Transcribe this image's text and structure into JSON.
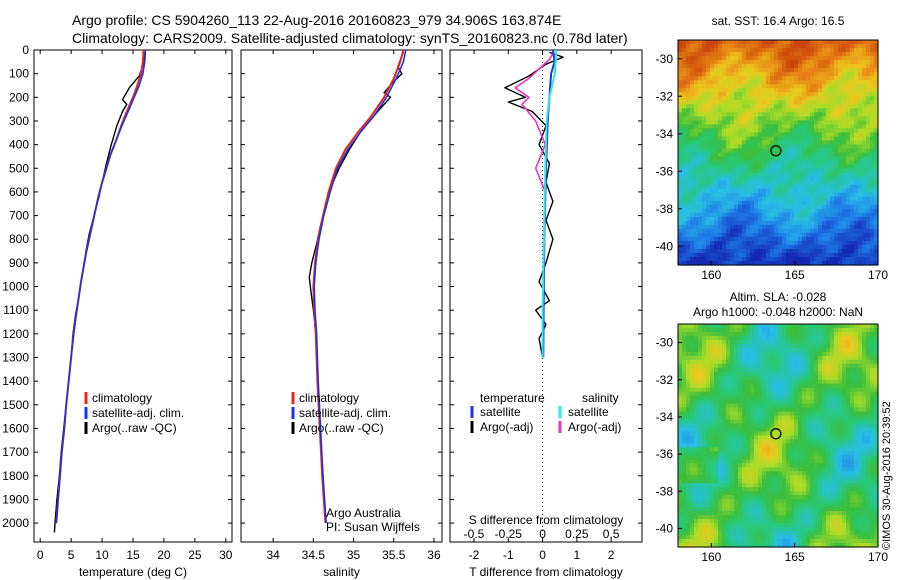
{
  "header": {
    "line1": "Argo profile: CS 5904260_113 22-Aug-2016 20160823_979 34.906S 163.874E",
    "line2": "Climatology: CARS2009. Satellite-adjusted climatology: synTS_20160823.nc (0.78d later)"
  },
  "credit": {
    "line1": "Argo Australia",
    "line2": "PI: Susan Wijffels"
  },
  "footer": "©IMOS 30-Aug-2016 20:39:52",
  "colors": {
    "climatology": "#e0281e",
    "satellite": "#1e32e6",
    "argo": "#000000",
    "sat_salinity": "#2ee6e6",
    "argo_salinity": "#e632c8",
    "axis": "#000000"
  },
  "chart_data": [
    {
      "type": "line",
      "xlabel": "temperature (deg C)",
      "ylim": [
        2080,
        0
      ],
      "xlim": [
        -1,
        31
      ],
      "xticks": [
        "0",
        "5",
        "10",
        "15",
        "20",
        "25",
        "30"
      ],
      "yticks": [
        "0",
        "100",
        "200",
        "300",
        "400",
        "500",
        "600",
        "700",
        "800",
        "900",
        "1000",
        "1100",
        "1200",
        "1300",
        "1400",
        "1500",
        "1600",
        "1700",
        "1800",
        "1900",
        "2000"
      ],
      "legend": [
        "climatology",
        "satellite-adj. clim.",
        "Argo(..raw -QC)"
      ],
      "series": [
        {
          "name": "climatology",
          "points": [
            [
              16.7,
              0
            ],
            [
              16.6,
              50
            ],
            [
              16.3,
              100
            ],
            [
              15.7,
              150
            ],
            [
              15.0,
              200
            ],
            [
              14.0,
              260
            ],
            [
              13.1,
              320
            ],
            [
              12.3,
              380
            ],
            [
              11.4,
              440
            ],
            [
              10.7,
              500
            ],
            [
              10.0,
              560
            ],
            [
              9.4,
              620
            ],
            [
              8.9,
              680
            ],
            [
              8.4,
              740
            ],
            [
              7.9,
              800
            ],
            [
              7.4,
              860
            ],
            [
              7.0,
              920
            ],
            [
              6.6,
              980
            ],
            [
              6.2,
              1050
            ],
            [
              5.8,
              1120
            ],
            [
              5.4,
              1200
            ],
            [
              5.0,
              1300
            ],
            [
              4.6,
              1400
            ],
            [
              4.2,
              1500
            ],
            [
              3.9,
              1600
            ],
            [
              3.5,
              1700
            ],
            [
              3.2,
              1800
            ],
            [
              2.9,
              1900
            ],
            [
              2.6,
              2000
            ]
          ]
        },
        {
          "name": "satellite-adj. clim.",
          "points": [
            [
              17.0,
              0
            ],
            [
              16.9,
              50
            ],
            [
              16.6,
              100
            ],
            [
              16.0,
              150
            ],
            [
              15.2,
              200
            ],
            [
              14.2,
              260
            ],
            [
              13.2,
              320
            ],
            [
              12.3,
              380
            ],
            [
              11.4,
              440
            ],
            [
              10.7,
              500
            ],
            [
              10.0,
              560
            ],
            [
              9.4,
              620
            ],
            [
              8.9,
              680
            ],
            [
              8.4,
              740
            ],
            [
              7.9,
              800
            ],
            [
              7.4,
              860
            ],
            [
              7.0,
              920
            ],
            [
              6.6,
              980
            ],
            [
              6.2,
              1050
            ],
            [
              5.8,
              1120
            ],
            [
              5.4,
              1200
            ],
            [
              5.0,
              1300
            ],
            [
              4.6,
              1400
            ],
            [
              4.2,
              1500
            ],
            [
              3.9,
              1600
            ],
            [
              3.5,
              1700
            ],
            [
              3.2,
              1800
            ],
            [
              2.9,
              1900
            ],
            [
              2.6,
              2000
            ]
          ]
        },
        {
          "name": "Argo(..raw -QC)",
          "points": [
            [
              16.9,
              10
            ],
            [
              16.7,
              60
            ],
            [
              16.0,
              110
            ],
            [
              14.4,
              160
            ],
            [
              13.3,
              210
            ],
            [
              14.0,
              230
            ],
            [
              13.3,
              260
            ],
            [
              12.4,
              320
            ],
            [
              11.5,
              400
            ],
            [
              10.7,
              480
            ],
            [
              10.0,
              560
            ],
            [
              9.5,
              620
            ],
            [
              9.0,
              670
            ],
            [
              8.5,
              720
            ],
            [
              7.9,
              780
            ],
            [
              7.4,
              850
            ],
            [
              7.0,
              920
            ],
            [
              6.6,
              980
            ],
            [
              6.2,
              1050
            ],
            [
              5.7,
              1120
            ],
            [
              5.3,
              1200
            ],
            [
              5.0,
              1300
            ],
            [
              4.6,
              1400
            ],
            [
              4.2,
              1500
            ],
            [
              3.8,
              1600
            ],
            [
              3.4,
              1700
            ],
            [
              3.1,
              1800
            ],
            [
              2.7,
              1900
            ],
            [
              2.4,
              2000
            ],
            [
              2.3,
              2040
            ]
          ]
        }
      ]
    },
    {
      "type": "line",
      "xlabel": "salinity",
      "ylim": [
        2080,
        0
      ],
      "xlim": [
        33.6,
        36.1
      ],
      "xticks": [
        "34",
        "34.5",
        "35",
        "35.5",
        "36"
      ],
      "legend": [
        "climatology",
        "satellite-adj. clim.",
        "Argo(..raw -QC)"
      ],
      "series": [
        {
          "name": "climatology",
          "points": [
            [
              35.62,
              0
            ],
            [
              35.58,
              50
            ],
            [
              35.5,
              120
            ],
            [
              35.38,
              200
            ],
            [
              35.22,
              280
            ],
            [
              35.05,
              350
            ],
            [
              34.9,
              420
            ],
            [
              34.78,
              500
            ],
            [
              34.69,
              600
            ],
            [
              34.62,
              700
            ],
            [
              34.56,
              800
            ],
            [
              34.52,
              900
            ],
            [
              34.5,
              1000
            ],
            [
              34.51,
              1100
            ],
            [
              34.53,
              1200
            ],
            [
              34.55,
              1400
            ],
            [
              34.58,
              1600
            ],
            [
              34.61,
              1800
            ],
            [
              34.65,
              2000
            ]
          ]
        },
        {
          "name": "satellite-adj. clim.",
          "points": [
            [
              35.65,
              0
            ],
            [
              35.62,
              50
            ],
            [
              35.53,
              120
            ],
            [
              35.41,
              200
            ],
            [
              35.25,
              280
            ],
            [
              35.08,
              350
            ],
            [
              34.93,
              420
            ],
            [
              34.8,
              500
            ],
            [
              34.71,
              600
            ],
            [
              34.63,
              700
            ],
            [
              34.57,
              800
            ],
            [
              34.53,
              900
            ],
            [
              34.51,
              1000
            ],
            [
              34.52,
              1100
            ],
            [
              34.54,
              1200
            ],
            [
              34.56,
              1400
            ],
            [
              34.59,
              1600
            ],
            [
              34.62,
              1800
            ],
            [
              34.66,
              2000
            ]
          ]
        },
        {
          "name": "Argo(..raw -QC)",
          "points": [
            [
              35.62,
              10
            ],
            [
              35.55,
              70
            ],
            [
              35.6,
              100
            ],
            [
              35.48,
              140
            ],
            [
              35.38,
              180
            ],
            [
              35.46,
              200
            ],
            [
              35.3,
              260
            ],
            [
              35.2,
              300
            ],
            [
              35.08,
              350
            ],
            [
              34.95,
              420
            ],
            [
              34.82,
              500
            ],
            [
              34.72,
              580
            ],
            [
              34.65,
              660
            ],
            [
              34.59,
              740
            ],
            [
              34.54,
              820
            ],
            [
              34.48,
              900
            ],
            [
              34.45,
              960
            ],
            [
              34.47,
              1020
            ],
            [
              34.5,
              1100
            ],
            [
              34.53,
              1200
            ],
            [
              34.55,
              1400
            ],
            [
              34.58,
              1600
            ],
            [
              34.62,
              1800
            ],
            [
              34.64,
              1950
            ]
          ]
        }
      ]
    },
    {
      "type": "line",
      "xlabel": "T difference from climatology",
      "x2label": "S difference from climatology",
      "ylim": [
        2080,
        0
      ],
      "xlim": [
        -2.7,
        2.9
      ],
      "xticks": [
        "-2",
        "-1",
        "0",
        "1",
        "2"
      ],
      "x2ticks": [
        "-0.5",
        "-0.25",
        "0",
        "0.25",
        "0.5"
      ],
      "legend_title": [
        "temperature",
        "salinity"
      ],
      "legend": [
        "satellite",
        "Argo(-adj)",
        "satellite",
        "Argo(-adj)"
      ],
      "series": [
        {
          "name": "satellite",
          "points": [
            [
              0.3,
              0
            ],
            [
              0.35,
              50
            ],
            [
              0.25,
              100
            ],
            [
              0.2,
              200
            ],
            [
              0.15,
              300
            ],
            [
              0.1,
              500
            ],
            [
              0.05,
              800
            ],
            [
              0.03,
              1100
            ],
            [
              0.02,
              1300
            ]
          ]
        },
        {
          "name": "Argo(-adj)",
          "points": [
            [
              0.2,
              10
            ],
            [
              0.6,
              30
            ],
            [
              0.1,
              60
            ],
            [
              -0.4,
              110
            ],
            [
              -1.1,
              160
            ],
            [
              -0.5,
              200
            ],
            [
              -1.0,
              220
            ],
            [
              -0.3,
              260
            ],
            [
              0.1,
              320
            ],
            [
              -0.1,
              400
            ],
            [
              0.2,
              480
            ],
            [
              0.1,
              560
            ],
            [
              0.3,
              640
            ],
            [
              0.1,
              720
            ],
            [
              0.3,
              800
            ],
            [
              0.1,
              900
            ],
            [
              -0.1,
              980
            ],
            [
              0.2,
              1060
            ],
            [
              -0.2,
              1100
            ],
            [
              0.1,
              1160
            ],
            [
              -0.1,
              1220
            ],
            [
              0.0,
              1300
            ]
          ]
        },
        {
          "name": "satellite",
          "points": [
            [
              0.1,
              0
            ],
            [
              0.09,
              100
            ],
            [
              0.05,
              200
            ],
            [
              0.03,
              300
            ],
            [
              0.02,
              500
            ],
            [
              0.01,
              800
            ],
            [
              0.0,
              1100
            ],
            [
              0.0,
              1300
            ]
          ]
        },
        {
          "name": "Argo(-adj)",
          "points": [
            [
              0.08,
              10
            ],
            [
              0.05,
              40
            ],
            [
              -0.1,
              120
            ],
            [
              -0.2,
              160
            ],
            [
              -0.1,
              200
            ],
            [
              -0.15,
              230
            ],
            [
              -0.05,
              300
            ],
            [
              0.02,
              400
            ],
            [
              -0.05,
              500
            ],
            [
              0.02,
              600
            ]
          ]
        }
      ]
    }
  ],
  "maps": [
    {
      "title": "sat. SST: 16.4  Argo: 16.5",
      "xlim": [
        158,
        170
      ],
      "ylim": [
        -41,
        -29
      ],
      "xticks": [
        "160",
        "165",
        "170"
      ],
      "yticks": [
        "-30",
        "-32",
        "-34",
        "-36",
        "-38",
        "-40"
      ],
      "marker": [
        163.874,
        -34.906
      ]
    },
    {
      "title1": "Altim. SLA: -0.028",
      "title2": "Argo h1000: -0.048 h2000: NaN",
      "xlim": [
        158,
        170
      ],
      "ylim": [
        -41,
        -29
      ],
      "xticks": [
        "160",
        "165",
        "170"
      ],
      "yticks": [
        "-30",
        "-32",
        "-34",
        "-36",
        "-38",
        "-40"
      ],
      "marker": [
        163.874,
        -34.906
      ]
    }
  ]
}
